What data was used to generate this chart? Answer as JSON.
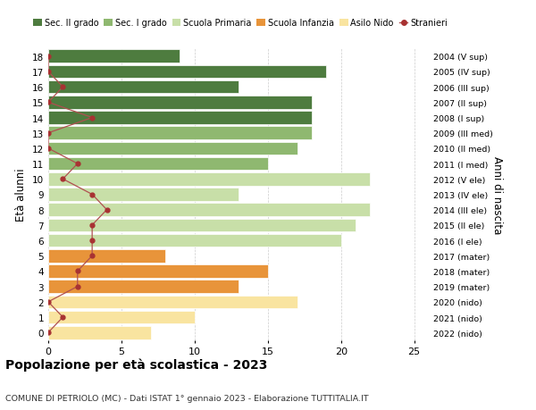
{
  "ages": [
    0,
    1,
    2,
    3,
    4,
    5,
    6,
    7,
    8,
    9,
    10,
    11,
    12,
    13,
    14,
    15,
    16,
    17,
    18
  ],
  "right_labels": [
    "2022 (nido)",
    "2021 (nido)",
    "2020 (nido)",
    "2019 (mater)",
    "2018 (mater)",
    "2017 (mater)",
    "2016 (I ele)",
    "2015 (II ele)",
    "2014 (III ele)",
    "2013 (IV ele)",
    "2012 (V ele)",
    "2011 (I med)",
    "2010 (II med)",
    "2009 (III med)",
    "2008 (I sup)",
    "2007 (II sup)",
    "2006 (III sup)",
    "2005 (IV sup)",
    "2004 (V sup)"
  ],
  "bar_values": [
    7,
    10,
    17,
    13,
    15,
    8,
    20,
    21,
    22,
    13,
    22,
    15,
    17,
    18,
    18,
    18,
    13,
    19,
    9
  ],
  "bar_colors": [
    "#f9e4a0",
    "#f9e4a0",
    "#f9e4a0",
    "#e8943a",
    "#e8943a",
    "#e8943a",
    "#c8dfa8",
    "#c8dfa8",
    "#c8dfa8",
    "#c8dfa8",
    "#c8dfa8",
    "#8fb870",
    "#8fb870",
    "#8fb870",
    "#4e7c3f",
    "#4e7c3f",
    "#4e7c3f",
    "#4e7c3f",
    "#4e7c3f"
  ],
  "stranieri_values": [
    0,
    1,
    0,
    2,
    2,
    3,
    3,
    3,
    4,
    3,
    1,
    2,
    0,
    0,
    3,
    0,
    1,
    0,
    0
  ],
  "title": "Popolazione per età scolastica - 2023",
  "subtitle": "COMUNE DI PETRIOLO (MC) - Dati ISTAT 1° gennaio 2023 - Elaborazione TUTTITALIA.IT",
  "ylabel": "Età alunni",
  "right_ylabel": "Anni di nascita",
  "xlabel_max": 25,
  "legend_labels": [
    "Sec. II grado",
    "Sec. I grado",
    "Scuola Primaria",
    "Scuola Infanzia",
    "Asilo Nido",
    "Stranieri"
  ],
  "legend_colors": [
    "#4e7c3f",
    "#8fb870",
    "#c8dfa8",
    "#e8943a",
    "#f9e4a0",
    "#a83232"
  ],
  "stranieri_color": "#a83232",
  "stranieri_line_color": "#b05050",
  "background_color": "#ffffff",
  "grid_color": "#cccccc"
}
